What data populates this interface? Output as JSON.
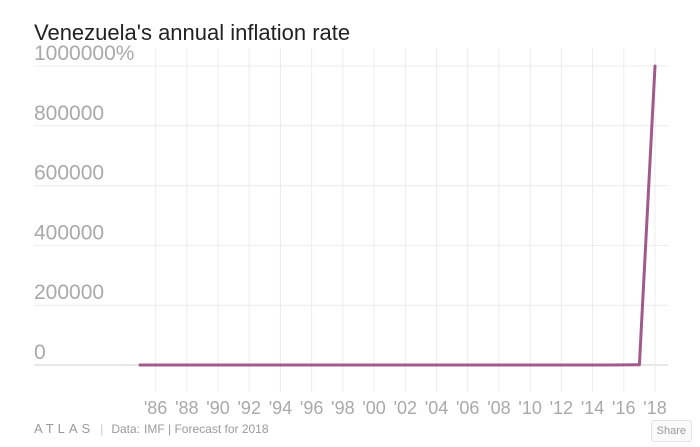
{
  "chart_data": {
    "type": "line",
    "title": "Venezuela's annual inflation rate",
    "xlabel": "",
    "ylabel": "",
    "x": [
      1985,
      1986,
      1987,
      1988,
      1989,
      1990,
      1991,
      1992,
      1993,
      1994,
      1995,
      1996,
      1997,
      1998,
      1999,
      2000,
      2001,
      2002,
      2003,
      2004,
      2005,
      2006,
      2007,
      2008,
      2009,
      2010,
      2011,
      2012,
      2013,
      2014,
      2015,
      2016,
      2017,
      2018
    ],
    "series": [
      {
        "name": "Annual inflation rate",
        "color": "#a05a8c",
        "values": [
          11,
          12,
          28,
          30,
          84,
          41,
          34,
          31,
          38,
          61,
          60,
          100,
          50,
          36,
          24,
          16,
          13,
          22,
          31,
          22,
          16,
          14,
          19,
          31,
          27,
          28,
          26,
          21,
          41,
          62,
          122,
          255,
          1087,
          1000000
        ]
      }
    ],
    "ylim": [
      0,
      1000000
    ],
    "xlim": [
      1985,
      2018
    ],
    "yticks": [
      0,
      200000,
      400000,
      600000,
      800000,
      1000000
    ],
    "ytick_labels": [
      "0",
      "200000",
      "400000",
      "600000",
      "800000",
      "1000000%"
    ],
    "xticks": [
      1986,
      1988,
      1990,
      1992,
      1994,
      1996,
      1998,
      2000,
      2002,
      2004,
      2006,
      2008,
      2010,
      2012,
      2014,
      2016,
      2018
    ],
    "xtick_labels": [
      "'86",
      "'88",
      "'90",
      "'92",
      "'94",
      "'96",
      "'98",
      "'00",
      "'02",
      "'04",
      "'06",
      "'08",
      "'10",
      "'12",
      "'14",
      "'16",
      "'18"
    ],
    "grid": true
  },
  "footer": {
    "logo": "ATLAS",
    "separator": "|",
    "data_label": "Data:",
    "source": "IMF | Forecast for 2018"
  },
  "share_label": "Share",
  "colors": {
    "line": "#a05a8c",
    "grid": "#ececec",
    "tick": "#a9a9a9",
    "title": "#222222"
  }
}
